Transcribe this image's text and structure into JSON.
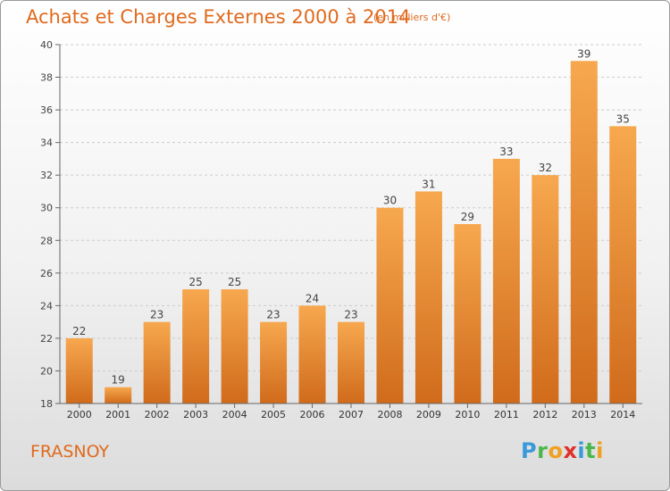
{
  "title": "Achats et Charges Externes 2000 à 2014",
  "unit_note": "(en milliers d'€)",
  "commune": "FRASNOY",
  "brand": {
    "letters": [
      "P",
      "r",
      "o",
      "x",
      "i",
      "t",
      "i"
    ],
    "colors": [
      "#3a9ad9",
      "#4bb84b",
      "#f0a020",
      "#e0302a",
      "#3a9ad9",
      "#4bb84b",
      "#f0a020"
    ]
  },
  "colors": {
    "title": "#e06a1e",
    "bar_top": "#f7a84f",
    "bar_bottom": "#d06b1b",
    "grid": "#cccccc"
  },
  "chart_data": {
    "type": "bar",
    "categories": [
      "2000",
      "2001",
      "2002",
      "2003",
      "2004",
      "2005",
      "2006",
      "2007",
      "2008",
      "2009",
      "2010",
      "2011",
      "2012",
      "2013",
      "2014"
    ],
    "values": [
      22,
      19,
      23,
      25,
      25,
      23,
      24,
      23,
      30,
      31,
      29,
      33,
      32,
      39,
      35
    ],
    "ylim": [
      18,
      40
    ],
    "yticks": [
      18,
      20,
      22,
      24,
      26,
      28,
      30,
      32,
      34,
      36,
      38,
      40
    ],
    "grid": "horizontal dashed",
    "data_labels": true
  }
}
